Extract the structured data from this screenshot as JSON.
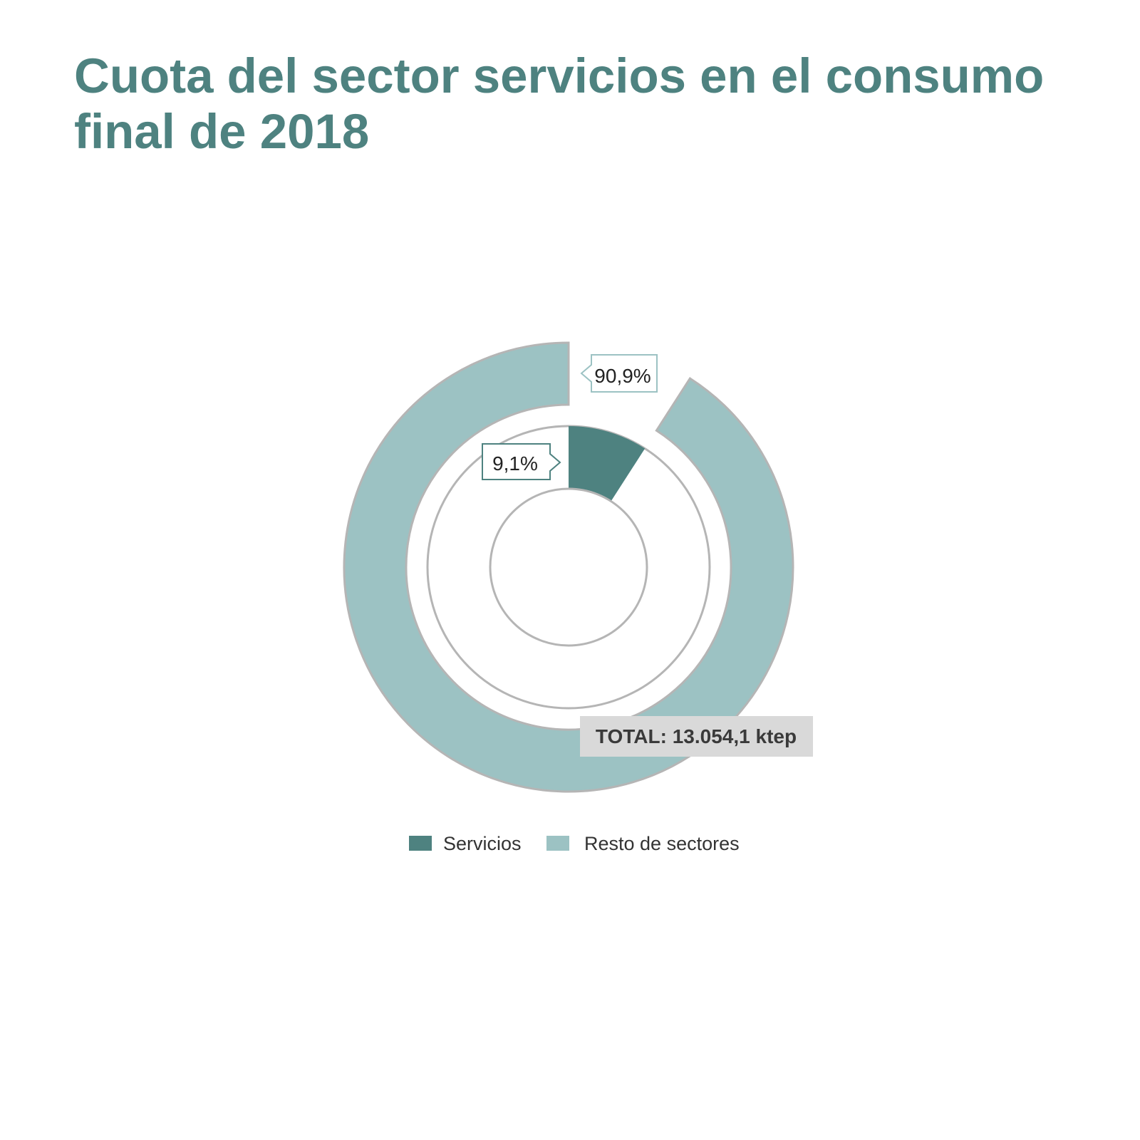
{
  "chart_data": {
    "type": "pie",
    "title": "Cuota del sector servicios en el consumo final de 2018",
    "series": [
      {
        "name": "Servicios",
        "value": 9.1,
        "label": "9,1%",
        "color": "#4e8280"
      },
      {
        "name": "Resto de sectores",
        "value": 90.9,
        "label": "90,9%",
        "color": "#9cc2c3"
      }
    ],
    "total_label": "TOTAL: 13.054,1 ktep",
    "legend": {
      "placement": "bottom",
      "items": [
        "Servicios",
        "Resto de sectores"
      ]
    }
  }
}
